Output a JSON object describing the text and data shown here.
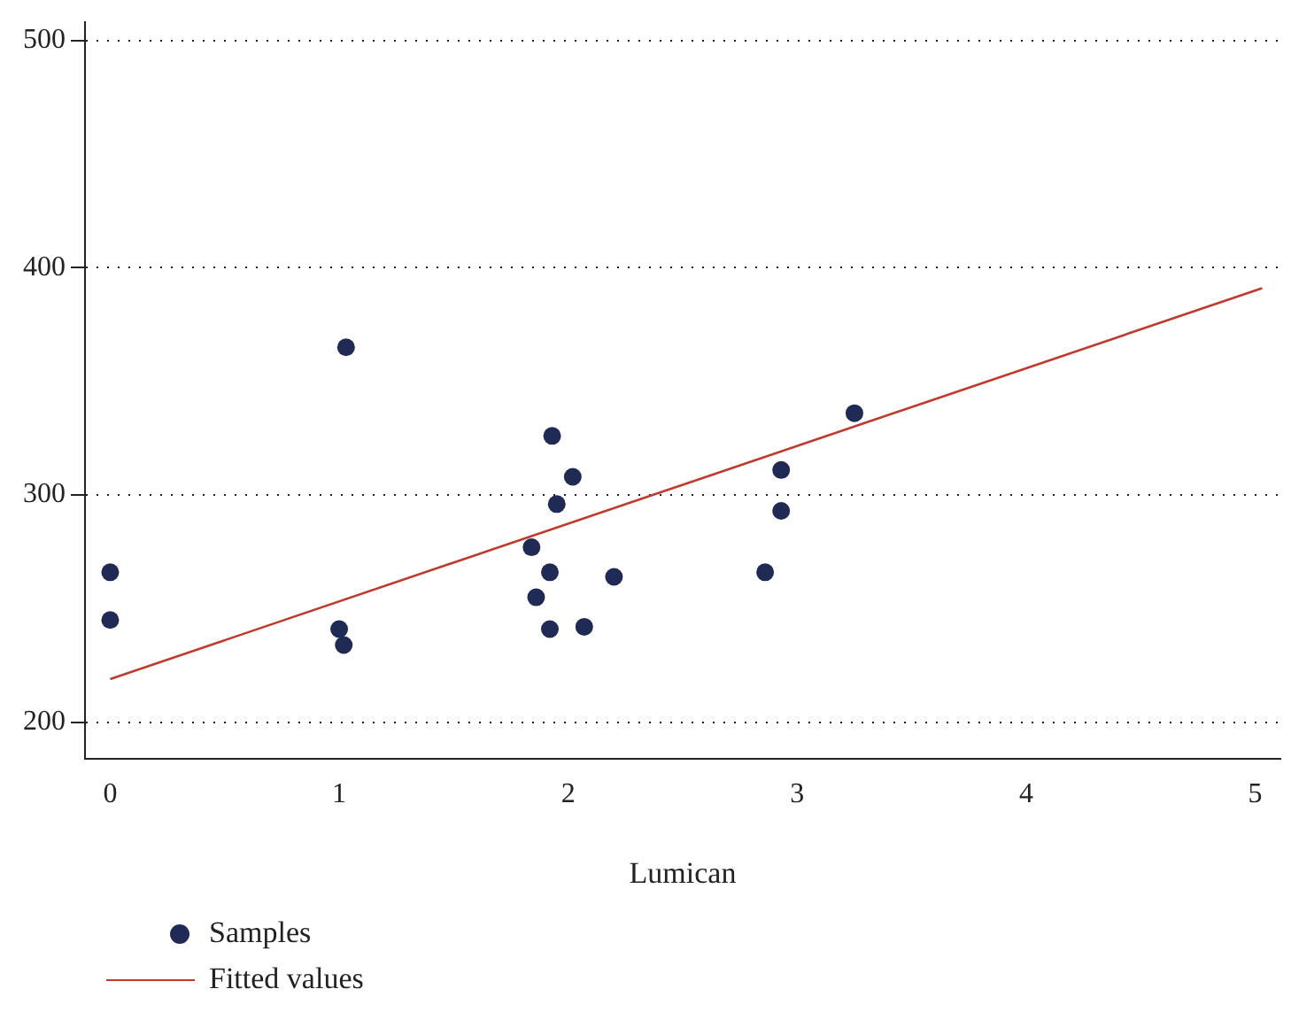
{
  "chart_data": {
    "type": "scatter",
    "xlabel": "Lumican",
    "xlim": [
      -0.11,
      5.11
    ],
    "xticks": [
      0,
      1,
      2,
      3,
      4,
      5
    ],
    "ylim": [
      184,
      508
    ],
    "yticks": [
      200,
      300,
      400,
      500
    ],
    "grid": "y",
    "legend": "bottom left",
    "series": [
      {
        "name": "Samples",
        "type": "scatter",
        "color": "#1f2a55",
        "marker": "circle",
        "x": [
          0,
          0,
          1.03,
          1.0,
          1.02,
          1.93,
          2.02,
          1.95,
          1.84,
          1.86,
          1.92,
          1.92,
          2.07,
          2.2,
          2.86,
          2.93,
          2.93,
          3.25
        ],
        "values": [
          266,
          245,
          365,
          241,
          234,
          326,
          308,
          296,
          277,
          255,
          266,
          241,
          242,
          264,
          266,
          311,
          293,
          336
        ]
      },
      {
        "name": "Fitted values",
        "type": "line",
        "color": "#c0392b",
        "marker": "none",
        "line_style": "solid",
        "x": [
          0,
          5.03
        ],
        "values": [
          219,
          391
        ]
      }
    ]
  }
}
